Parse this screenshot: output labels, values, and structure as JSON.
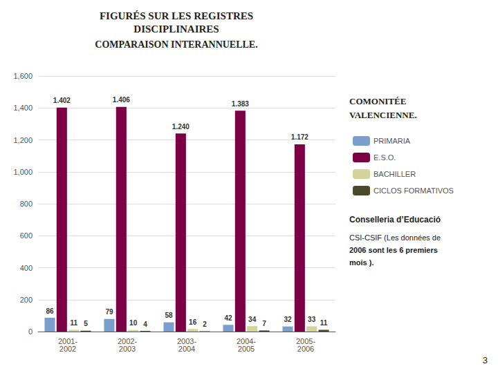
{
  "chart_data": {
    "type": "bar",
    "title": "FIGURÉS SUR LES REGISTRES\nDISCIPLINAIRES",
    "subtitle": "COMPARAISON INTERANNUELLE.",
    "categories": [
      "2001-\n2002",
      "2002-\n2003",
      "2003-\n2004",
      "2004-\n2005",
      "2005-\n2006"
    ],
    "series": [
      {
        "name": "PRIMARIA",
        "color": "#7B9FCC",
        "values": [
          86,
          79,
          58,
          42,
          32
        ]
      },
      {
        "name": "E.S.O.",
        "color": "#7B0044",
        "values": [
          1402,
          1406,
          1240,
          1383,
          1172
        ],
        "value_labels": [
          "1.402",
          "1.406",
          "1.240",
          "1.383",
          "1.172"
        ]
      },
      {
        "name": "BACHILLER",
        "color": "#D4D49A",
        "values": [
          11,
          10,
          16,
          34,
          33
        ]
      },
      {
        "name": "CICLOS FORMATIVOS",
        "color": "#4A4A2A",
        "values": [
          5,
          4,
          2,
          7,
          11
        ]
      }
    ],
    "ylim": [
      0,
      1600
    ],
    "yticks": [
      0,
      200,
      400,
      600,
      800,
      1000,
      1200,
      1400,
      1600
    ],
    "grid": true,
    "legend": "right",
    "data_labels": true,
    "annotations": [
      "COMONITÉE",
      "VALENCIENNE.",
      "Conselleria d’Educació",
      "CSI-CSIF (Les données de",
      "2006 sont les 6 premiers",
      "mois ).",
      "3"
    ]
  }
}
